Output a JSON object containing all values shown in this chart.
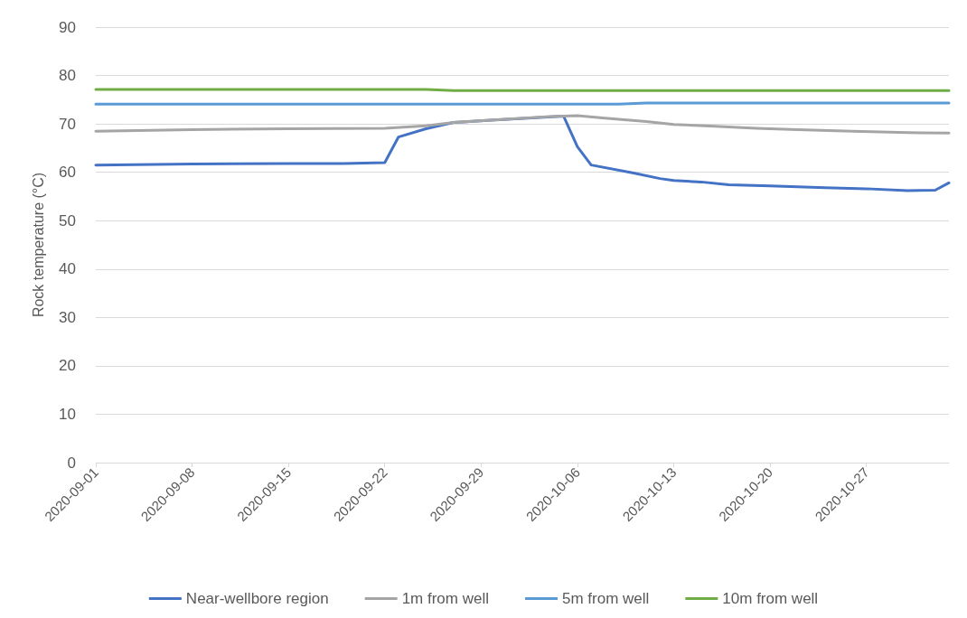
{
  "chart_data": {
    "type": "line",
    "ylabel": "Rock temperature (°C)",
    "xlim": [
      "2020-09-01",
      "2020-11-02"
    ],
    "xticks": [
      "2020-09-01",
      "2020-09-08",
      "2020-09-15",
      "2020-09-22",
      "2020-09-29",
      "2020-10-06",
      "2020-10-13",
      "2020-10-20",
      "2020-10-27"
    ],
    "ylim": [
      0,
      90
    ],
    "yticks": [
      0,
      10,
      20,
      30,
      40,
      50,
      60,
      70,
      80,
      90
    ],
    "grid": "y",
    "legend": "bottom",
    "marker": "none",
    "line_style": "solid",
    "series": [
      {
        "name": "Near-wellbore region",
        "color": "#4472c4",
        "x": [
          "2020-09-01",
          "2020-09-08",
          "2020-09-15",
          "2020-09-19",
          "2020-09-22",
          "2020-09-23",
          "2020-09-25",
          "2020-09-27",
          "2020-09-30",
          "2020-10-03",
          "2020-10-05",
          "2020-10-06",
          "2020-10-07",
          "2020-10-10",
          "2020-10-12",
          "2020-10-13",
          "2020-10-15",
          "2020-10-17",
          "2020-10-20",
          "2020-10-24",
          "2020-10-27",
          "2020-10-30",
          "2020-11-01",
          "2020-11-02"
        ],
        "values": [
          61.5,
          61.7,
          61.8,
          61.8,
          62,
          67.3,
          69,
          70.3,
          70.8,
          71.3,
          71.6,
          65.3,
          61.5,
          59.9,
          58.7,
          58.3,
          58,
          57.4,
          57.2,
          56.8,
          56.6,
          56.2,
          56.3,
          57.8
        ]
      },
      {
        "name": "1m from well",
        "color": "#a5a5a5",
        "x": [
          "2020-09-01",
          "2020-09-08",
          "2020-09-15",
          "2020-09-22",
          "2020-09-25",
          "2020-09-27",
          "2020-10-01",
          "2020-10-04",
          "2020-10-06",
          "2020-10-08",
          "2020-10-11",
          "2020-10-13",
          "2020-10-16",
          "2020-10-19",
          "2020-10-22",
          "2020-10-26",
          "2020-10-30",
          "2020-11-02"
        ],
        "values": [
          68.5,
          68.8,
          69,
          69.1,
          69.6,
          70.3,
          71,
          71.5,
          71.7,
          71.2,
          70.5,
          69.9,
          69.5,
          69.1,
          68.8,
          68.5,
          68.2,
          68.1
        ]
      },
      {
        "name": "5m from well",
        "color": "#5b9bd5",
        "x": [
          "2020-09-01",
          "2020-10-09",
          "2020-10-11",
          "2020-11-02"
        ],
        "values": [
          74.1,
          74.1,
          74.3,
          74.3
        ]
      },
      {
        "name": "10m from well",
        "color": "#70ad47",
        "x": [
          "2020-09-01",
          "2020-09-25",
          "2020-09-27",
          "2020-11-02"
        ],
        "values": [
          77.1,
          77.1,
          76.9,
          76.9
        ]
      }
    ]
  }
}
